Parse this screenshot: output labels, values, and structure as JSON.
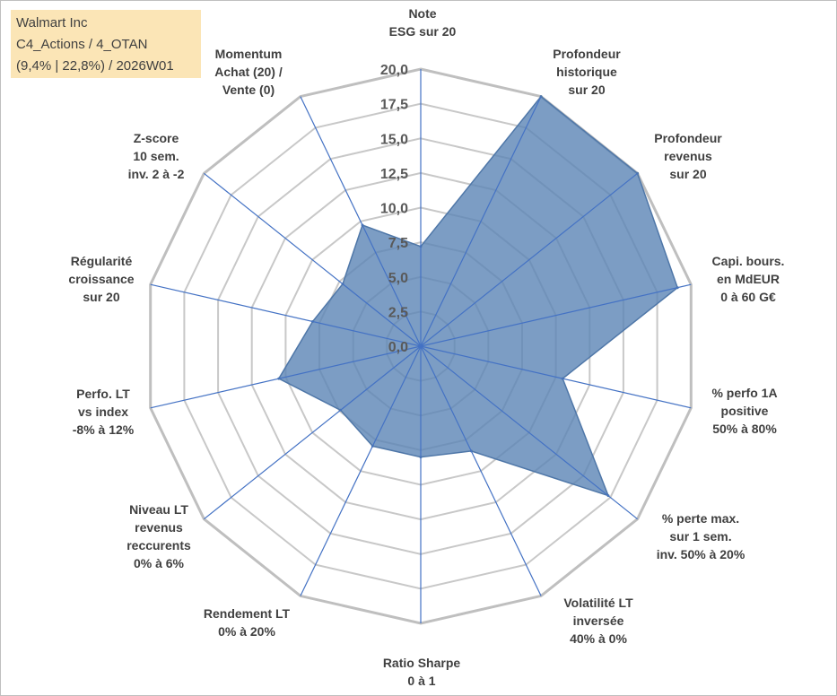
{
  "info_box": {
    "line1": "Walmart Inc",
    "line2": "C4_Actions / 4_OTAN",
    "line3": "(9,4% | 22,8%) / 2026W01",
    "background": "#fbe5b6"
  },
  "chart_data": {
    "type": "radar",
    "title": "",
    "rmin": 0,
    "rmax": 20,
    "ticks": [
      "0,0",
      "2,5",
      "5,0",
      "7,5",
      "10,0",
      "12,5",
      "15,0",
      "17,5",
      "20,0"
    ],
    "categories": [
      {
        "lines": [
          "Note",
          "ESG sur 20"
        ]
      },
      {
        "lines": [
          "Profondeur",
          "historique",
          "sur 20"
        ]
      },
      {
        "lines": [
          "Profondeur",
          "revenus",
          "sur 20"
        ]
      },
      {
        "lines": [
          "Capi. bours.",
          "en MdEUR",
          "0 à 60 G€"
        ]
      },
      {
        "lines": [
          "% perfo 1A",
          "positive",
          "50% à 80%"
        ]
      },
      {
        "lines": [
          "% perte max.",
          "sur 1 sem.",
          "inv. 50% à 20%"
        ]
      },
      {
        "lines": [
          "Volatilité LT",
          "inversée",
          "40% à 0%"
        ]
      },
      {
        "lines": [
          "Ratio Sharpe",
          "0 à 1"
        ]
      },
      {
        "lines": [
          "Rendement LT",
          "0% à 20%"
        ]
      },
      {
        "lines": [
          "Niveau LT",
          "revenus",
          "reccurents",
          "0% à 6%"
        ]
      },
      {
        "lines": [
          "Perfo. LT",
          "vs index",
          "-8% à 12%"
        ]
      },
      {
        "lines": [
          "Régularité",
          "croissance",
          "sur 20"
        ]
      },
      {
        "lines": [
          "Z-score",
          "10 sem.",
          "inv. 2 à -2"
        ]
      },
      {
        "lines": [
          "Momentum",
          "Achat (20) /",
          "Vente (0)"
        ]
      }
    ],
    "series": [
      {
        "name": "Walmart Inc",
        "values": [
          7.2,
          20.0,
          20.0,
          19.0,
          10.5,
          17.3,
          8.4,
          8.0,
          8.0,
          7.4,
          10.5,
          8.0,
          7.2,
          9.7
        ],
        "fill": "#5b84b5",
        "stroke": "#4f77a8"
      }
    ],
    "colors": {
      "grid": "#c8c8c8",
      "outer_ring": "#bfbfbf",
      "spoke": "#4472c4"
    }
  }
}
